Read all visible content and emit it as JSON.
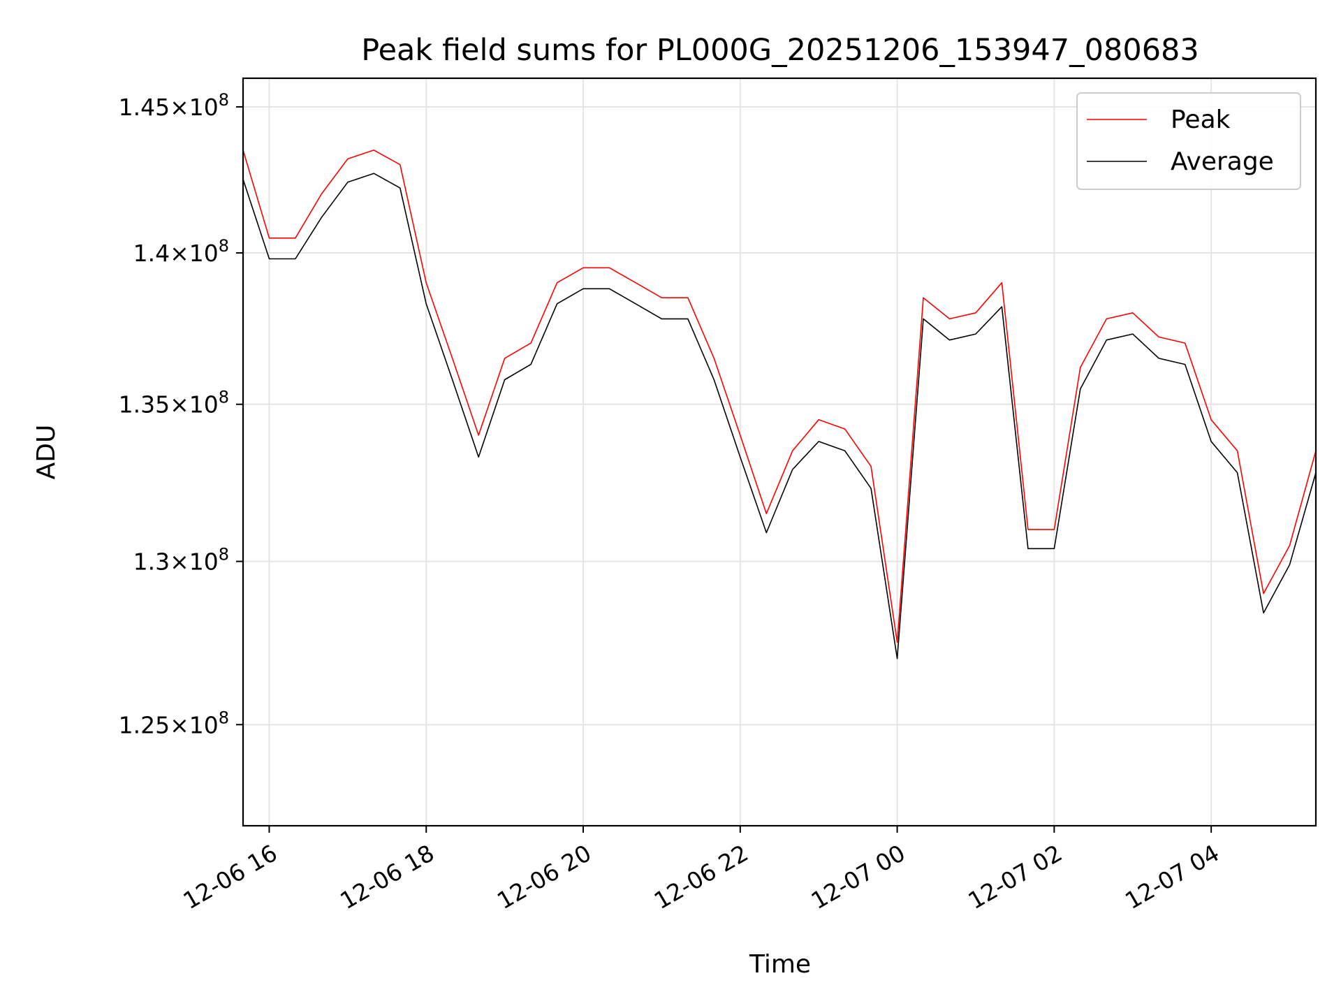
{
  "chart_data": {
    "type": "line",
    "title": "Peak field sums for PL000G_20251206_153947_080683",
    "xlabel": "Time",
    "ylabel": "ADU",
    "yscale": "log",
    "xlim": [
      "2025-12-06 15:40",
      "2025-12-07 05:20"
    ],
    "ylim": [
      122000000,
      146000000
    ],
    "grid": true,
    "legend_position": "top-right",
    "x_ticks": [
      {
        "value": "2025-12-06 16:00",
        "label": "12-06 16"
      },
      {
        "value": "2025-12-06 18:00",
        "label": "12-06 18"
      },
      {
        "value": "2025-12-06 20:00",
        "label": "12-06 20"
      },
      {
        "value": "2025-12-06 22:00",
        "label": "12-06 22"
      },
      {
        "value": "2025-12-07 00:00",
        "label": "12-07 00"
      },
      {
        "value": "2025-12-07 02:00",
        "label": "12-07 02"
      },
      {
        "value": "2025-12-07 04:00",
        "label": "12-07 04"
      }
    ],
    "y_ticks": [
      {
        "value": 125000000,
        "mantissa": "1.25",
        "exponent": "8"
      },
      {
        "value": 130000000,
        "mantissa": "1.3",
        "exponent": "8"
      },
      {
        "value": 135000000,
        "mantissa": "1.35",
        "exponent": "8"
      },
      {
        "value": 140000000,
        "mantissa": "1.4",
        "exponent": "8"
      },
      {
        "value": 145000000,
        "mantissa": "1.45",
        "exponent": "8"
      }
    ],
    "series": [
      {
        "name": "Peak",
        "color": "#ff0000",
        "x": [
          "2025-12-06 15:40",
          "2025-12-06 16:00",
          "2025-12-06 16:20",
          "2025-12-06 16:40",
          "2025-12-06 17:00",
          "2025-12-06 17:20",
          "2025-12-06 17:40",
          "2025-12-06 18:00",
          "2025-12-06 18:20",
          "2025-12-06 18:40",
          "2025-12-06 19:00",
          "2025-12-06 19:20",
          "2025-12-06 19:40",
          "2025-12-06 20:00",
          "2025-12-06 20:20",
          "2025-12-06 20:40",
          "2025-12-06 21:00",
          "2025-12-06 21:20",
          "2025-12-06 21:40",
          "2025-12-06 22:00",
          "2025-12-06 22:20",
          "2025-12-06 22:40",
          "2025-12-06 23:00",
          "2025-12-06 23:20",
          "2025-12-06 23:40",
          "2025-12-07 00:00",
          "2025-12-07 00:20",
          "2025-12-07 00:40",
          "2025-12-07 01:00",
          "2025-12-07 01:20",
          "2025-12-07 01:40",
          "2025-12-07 02:00",
          "2025-12-07 02:20",
          "2025-12-07 02:40",
          "2025-12-07 03:00",
          "2025-12-07 03:20",
          "2025-12-07 03:40",
          "2025-12-07 04:00",
          "2025-12-07 04:20",
          "2025-12-07 04:40",
          "2025-12-07 05:00",
          "2025-12-07 05:20"
        ],
        "values": [
          143500000,
          140500000,
          140500000,
          142000000,
          143200000,
          143500000,
          143000000,
          139000000,
          136500000,
          134000000,
          136500000,
          137000000,
          139000000,
          139500000,
          139500000,
          139000000,
          138500000,
          138500000,
          136500000,
          134000000,
          131500000,
          133500000,
          134500000,
          134200000,
          133000000,
          127500000,
          138500000,
          137800000,
          138000000,
          139000000,
          131000000,
          131000000,
          136200000,
          137800000,
          138000000,
          137200000,
          137000000,
          134500000,
          133500000,
          129000000,
          130500000,
          133500000
        ]
      },
      {
        "name": "Average",
        "color": "#000000",
        "x": [
          "2025-12-06 15:40",
          "2025-12-06 16:00",
          "2025-12-06 16:20",
          "2025-12-06 16:40",
          "2025-12-06 17:00",
          "2025-12-06 17:20",
          "2025-12-06 17:40",
          "2025-12-06 18:00",
          "2025-12-06 18:20",
          "2025-12-06 18:40",
          "2025-12-06 19:00",
          "2025-12-06 19:20",
          "2025-12-06 19:40",
          "2025-12-06 20:00",
          "2025-12-06 20:20",
          "2025-12-06 20:40",
          "2025-12-06 21:00",
          "2025-12-06 21:20",
          "2025-12-06 21:40",
          "2025-12-06 22:00",
          "2025-12-06 22:20",
          "2025-12-06 22:40",
          "2025-12-06 23:00",
          "2025-12-06 23:20",
          "2025-12-06 23:40",
          "2025-12-07 00:00",
          "2025-12-07 00:20",
          "2025-12-07 00:40",
          "2025-12-07 01:00",
          "2025-12-07 01:20",
          "2025-12-07 01:40",
          "2025-12-07 02:00",
          "2025-12-07 02:20",
          "2025-12-07 02:40",
          "2025-12-07 03:00",
          "2025-12-07 03:20",
          "2025-12-07 03:40",
          "2025-12-07 04:00",
          "2025-12-07 04:20",
          "2025-12-07 04:40",
          "2025-12-07 05:00",
          "2025-12-07 05:20"
        ],
        "values": [
          142500000,
          139800000,
          139800000,
          141200000,
          142400000,
          142700000,
          142200000,
          138300000,
          135800000,
          133300000,
          135800000,
          136300000,
          138300000,
          138800000,
          138800000,
          138300000,
          137800000,
          137800000,
          135800000,
          133300000,
          130900000,
          132900000,
          133800000,
          133500000,
          132300000,
          127000000,
          137800000,
          137100000,
          137300000,
          138200000,
          130400000,
          130400000,
          135500000,
          137100000,
          137300000,
          136500000,
          136300000,
          133800000,
          132800000,
          128400000,
          129900000,
          132800000
        ]
      }
    ]
  }
}
